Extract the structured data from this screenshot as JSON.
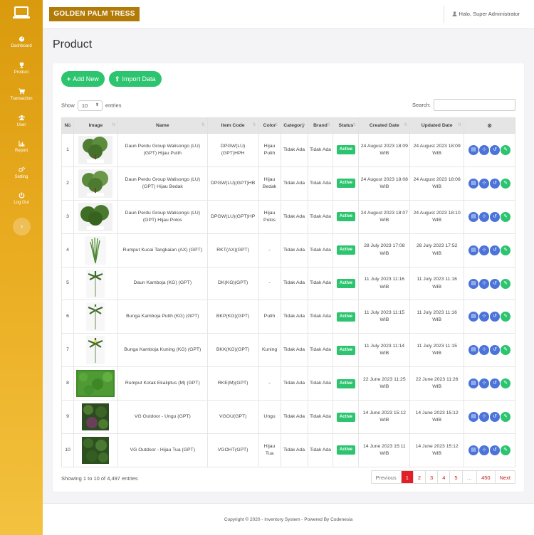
{
  "app": {
    "brand": "GOLDEN PALM TRESS",
    "user": "Halo, Super Administrator"
  },
  "sidebar": {
    "items": [
      {
        "label": "Dashboard",
        "icon": "dashboard-icon"
      },
      {
        "label": "Product",
        "icon": "trophy-icon"
      },
      {
        "label": "Transaction",
        "icon": "cart-icon"
      },
      {
        "label": "User",
        "icon": "users-icon"
      },
      {
        "label": "Report",
        "icon": "chart-icon"
      },
      {
        "label": "Setting",
        "icon": "gears-icon"
      },
      {
        "label": "Log Out",
        "icon": "power-icon"
      }
    ],
    "toggle": "›"
  },
  "page": {
    "title": "Product"
  },
  "toolbar": {
    "add_label": "Add New",
    "import_label": "Import Data"
  },
  "controls": {
    "show_label": "Show",
    "entries_label": "entries",
    "page_length": "10",
    "search_label": "Search:",
    "search_value": ""
  },
  "table": {
    "headers": [
      "No",
      "Image",
      "Name",
      "Item Code",
      "Color",
      "Category",
      "Brand",
      "Status",
      "Created Date",
      "Updated Date"
    ],
    "rows": [
      {
        "no": "1",
        "image": "Hijau Putih",
        "name": "Daun Perdu Group Walisongo (LU) (GPT) Hijau Putih",
        "code": "DPGW(LU)(GPT)HPH",
        "color": "Hijau Putih",
        "category": "Tidak Ada",
        "brand": "Tidak Ada",
        "status": "Active",
        "created": "24 August 2023 18:09 WIB",
        "updated": "24 August 2023 18:09 WIB"
      },
      {
        "no": "2",
        "image": "Hijau Bedak",
        "name": "Daun Perdu Group Walisongo (LU) (GPT) Hijau Bedak",
        "code": "DPGW(LU)(GPT)HB",
        "color": "Hijau Bedak",
        "category": "Tidak Ada",
        "brand": "Tidak Ada",
        "status": "Active",
        "created": "24 August 2023 18:08 WIB",
        "updated": "24 August 2023 18:08 WIB"
      },
      {
        "no": "3",
        "image": "Hijau Polos",
        "name": "Daun Perdu Group Walisongo (LU) (GPT) Hijau Polos",
        "code": "DPGW(LU)(GPT)HP",
        "color": "Hijau Polos",
        "category": "Tidak Ada",
        "brand": "Tidak Ada",
        "status": "Active",
        "created": "24 August 2023 18:07 WIB",
        "updated": "24 August 2023 18:10 WIB"
      },
      {
        "no": "4",
        "image": "",
        "name": "Rumput Kucai Tangkaian (AX) (GPT)",
        "code": "RKT(AX)(GPT)",
        "color": "-",
        "category": "Tidak Ada",
        "brand": "Tidak Ada",
        "status": "Active",
        "created": "28 July 2023 17:08 WIB",
        "updated": "28 July 2023 17:52 WIB"
      },
      {
        "no": "5",
        "image": "",
        "name": "Daun Kamboja (KG) (GPT)",
        "code": "DK(KG)(GPT)",
        "color": "-",
        "category": "Tidak Ada",
        "brand": "Tidak Ada",
        "status": "Active",
        "created": "11 July 2023 11:16 WIB",
        "updated": "11 July 2023 11:16 WIB"
      },
      {
        "no": "6",
        "image": "",
        "name": "Bunga Kamboja Putih (KG) (GPT)",
        "code": "BKP(KG)(GPT)",
        "color": "Putih",
        "category": "Tidak Ada",
        "brand": "Tidak Ada",
        "status": "Active",
        "created": "11 July 2023 11:15 WIB",
        "updated": "11 July 2023 11:16 WIB"
      },
      {
        "no": "7",
        "image": "",
        "name": "Bunga Kamboja Kuning (KG) (GPT)",
        "code": "BKK(KG)(GPT)",
        "color": "Kuning",
        "category": "Tidak Ada",
        "brand": "Tidak Ada",
        "status": "Active",
        "created": "11 July 2023 11:14 WIB",
        "updated": "11 July 2023 11:15 WIB"
      },
      {
        "no": "8",
        "image": "",
        "name": "Rumput Kotak Ekaliptus (M) (GPT)",
        "code": "RKE(M)(GPT)",
        "color": "-",
        "category": "Tidak Ada",
        "brand": "Tidak Ada",
        "status": "Active",
        "created": "22 June 2023 11:25 WIB",
        "updated": "22 June 2023 11:26 WIB"
      },
      {
        "no": "9",
        "image": "",
        "name": "VG Outdoor - Ungu (GPT)",
        "code": "VGOU(GPT)",
        "color": "Ungu",
        "category": "Tidak Ada",
        "brand": "Tidak Ada",
        "status": "Active",
        "created": "14 June 2023 15:12 WIB",
        "updated": "14 June 2023 15:12 WIB"
      },
      {
        "no": "10",
        "image": "",
        "name": "VG Outdoor - Hijau Tua (GPT)",
        "code": "VGOHT(GPT)",
        "color": "Hijau Tua",
        "category": "Tidak Ada",
        "brand": "Tidak Ada",
        "status": "Active",
        "created": "14 June 2023 15:11 WIB",
        "updated": "14 June 2023 15:12 WIB"
      }
    ]
  },
  "pagination": {
    "info": "Showing 1 to 10 of 4,497 entries",
    "pages": [
      "Previous",
      "1",
      "2",
      "3",
      "4",
      "5",
      "…",
      "450",
      "Next"
    ],
    "active": "1"
  },
  "footer": {
    "text": "Copyright © 2020 - Inventory System - Powered By Codenesia"
  },
  "colors": {
    "sidebar": "#e2a416",
    "brand": "#b27a07",
    "accent": "#2cc46f",
    "action": "#4b73d8",
    "active_page": "#e21f26"
  }
}
